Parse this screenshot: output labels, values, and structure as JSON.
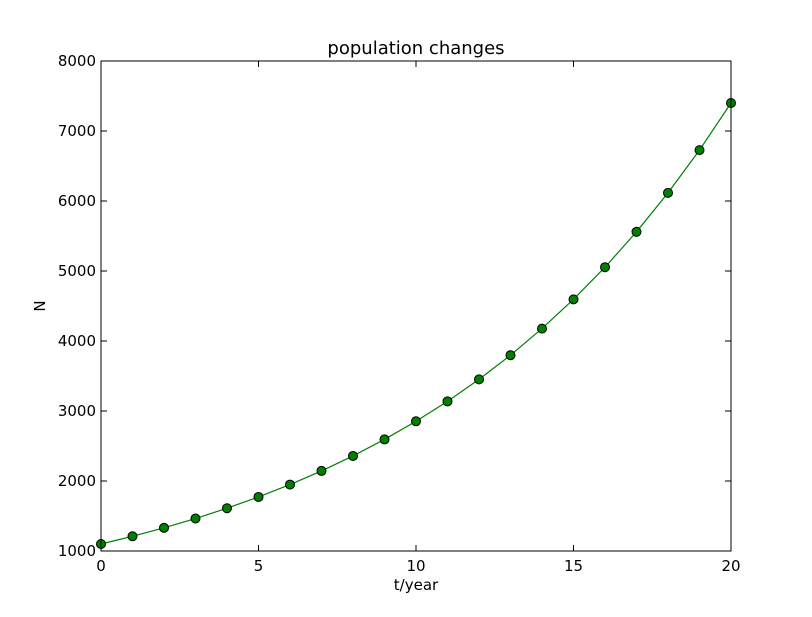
{
  "chart_data": {
    "type": "line",
    "title": "population changes",
    "xlabel": "t/year",
    "ylabel": "N",
    "xlim": [
      0,
      20
    ],
    "ylim": [
      1000,
      8000
    ],
    "xticks": [
      0,
      5,
      10,
      15,
      20
    ],
    "yticks": [
      1000,
      2000,
      3000,
      4000,
      5000,
      6000,
      7000,
      8000
    ],
    "grid": false,
    "legend": "none",
    "series": [
      {
        "color": "#007f00",
        "marker": "circle",
        "x": [
          0,
          1,
          2,
          3,
          4,
          5,
          6,
          7,
          8,
          9,
          10,
          11,
          12,
          13,
          14,
          15,
          16,
          17,
          18,
          19,
          20
        ],
        "y": [
          1100,
          1210,
          1331,
          1464,
          1611,
          1772,
          1949,
          2144,
          2358,
          2594,
          2853,
          3138,
          3452,
          3797,
          4177,
          4595,
          5054,
          5560,
          6116,
          6727,
          7400
        ]
      }
    ]
  }
}
